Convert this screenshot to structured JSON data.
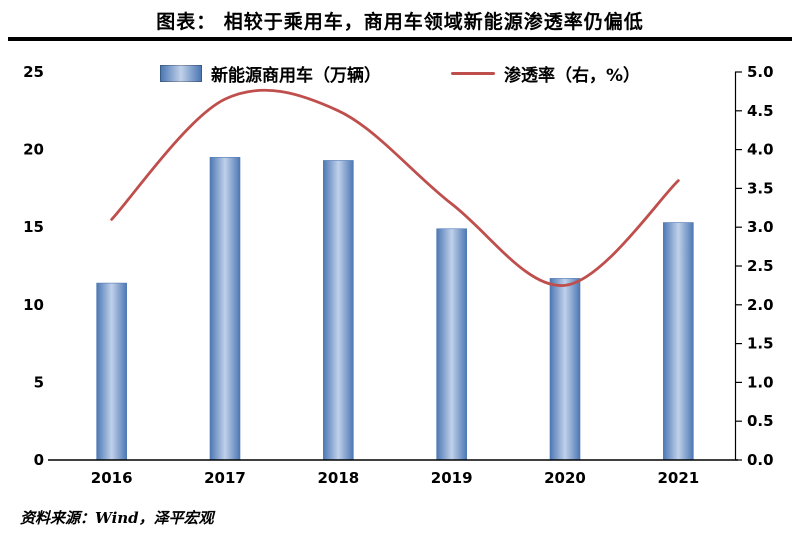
{
  "header": {
    "title": "图表：  相较于乘用车，商用车领域新能源渗透率仍偏低"
  },
  "legend": {
    "bars_label": "新能源商用车（万辆）",
    "line_label": "渗透率（右，%）"
  },
  "source": {
    "text": "资料来源：Wind，泽平宏观"
  },
  "colors": {
    "bar_edge": "#4d78b4",
    "bar_center": "#c0d1ea",
    "line": "#bf4f4c",
    "axis": "#000000",
    "divider": "#000000"
  },
  "chart_data": {
    "type": "bar",
    "title": "相较于乘用车，商用车领域新能源渗透率仍偏低",
    "categories": [
      "2016",
      "2017",
      "2018",
      "2019",
      "2020",
      "2021"
    ],
    "series": [
      {
        "name": "新能源商用车（万辆）",
        "type": "bar",
        "axis": "left",
        "values": [
          11.4,
          19.5,
          19.3,
          14.9,
          11.7,
          15.3
        ]
      },
      {
        "name": "渗透率（右，%）",
        "type": "line",
        "axis": "right",
        "values": [
          3.1,
          4.65,
          4.5,
          3.3,
          2.25,
          3.6
        ]
      }
    ],
    "left_axis": {
      "min": 0,
      "max": 25,
      "step": 5,
      "ticks": [
        "0",
        "5",
        "10",
        "15",
        "20",
        "25"
      ]
    },
    "right_axis": {
      "min": 0,
      "max": 5,
      "step": 0.5,
      "ticks": [
        "0.0",
        "0.5",
        "1.0",
        "1.5",
        "2.0",
        "2.5",
        "3.0",
        "3.5",
        "4.0",
        "4.5",
        "5.0"
      ]
    },
    "grid": false,
    "legend_position": "top"
  }
}
